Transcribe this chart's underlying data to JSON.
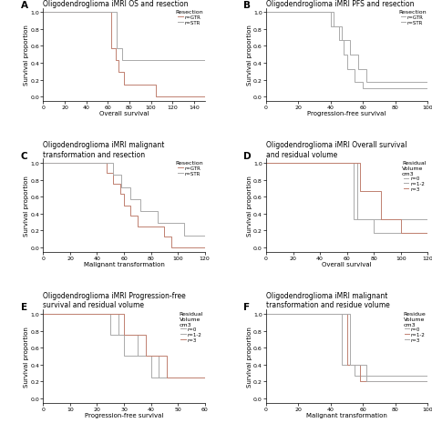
{
  "panels": [
    {
      "label": "A",
      "title": "Oligodendroglioma iMRI OS and resection",
      "xlabel": "Overall survival",
      "ylabel": "Survival proportion",
      "xlim": [
        0,
        150
      ],
      "ylim": [
        -0.05,
        1.05
      ],
      "xticks": [
        0,
        20,
        40,
        60,
        80,
        100,
        120,
        140
      ],
      "yticks": [
        0.0,
        0.2,
        0.4,
        0.6,
        0.8,
        1.0
      ],
      "legend_title": "Resection",
      "legend_labels": [
        "r=GTR",
        "r=STR"
      ],
      "curves": [
        {
          "x": [
            0,
            63,
            63,
            67,
            67,
            70,
            70,
            75,
            75,
            105,
            105,
            150
          ],
          "y": [
            1.0,
            1.0,
            0.57,
            0.57,
            0.43,
            0.43,
            0.29,
            0.29,
            0.14,
            0.14,
            0.0,
            0.0
          ],
          "color": "#c08070"
        },
        {
          "x": [
            0,
            68,
            68,
            73,
            73,
            80,
            80,
            95,
            95,
            140,
            140,
            150
          ],
          "y": [
            1.0,
            1.0,
            0.57,
            0.57,
            0.43,
            0.43,
            0.43,
            0.43,
            0.43,
            0.43,
            0.43,
            0.43
          ],
          "color": "#aaaaaa"
        }
      ]
    },
    {
      "label": "B",
      "title": "Oligodendroglioma iMRI PFS and resection",
      "xlabel": "Progression-free survival",
      "ylabel": "Survival proportion",
      "xlim": [
        0,
        100
      ],
      "ylim": [
        -0.05,
        1.05
      ],
      "xticks": [
        0,
        20,
        40,
        60,
        80,
        100
      ],
      "yticks": [
        0.0,
        0.2,
        0.4,
        0.6,
        0.8,
        1.0
      ],
      "legend_title": "Resection",
      "legend_labels": [
        "r=GTR",
        "r=STR"
      ],
      "curves": [
        {
          "x": [
            0,
            40,
            40,
            45,
            45,
            48,
            48,
            50,
            50,
            55,
            55,
            60,
            60,
            100
          ],
          "y": [
            1.0,
            1.0,
            0.83,
            0.83,
            0.67,
            0.67,
            0.5,
            0.5,
            0.33,
            0.33,
            0.17,
            0.17,
            0.1,
            0.1
          ],
          "color": "#aaaaaa"
        },
        {
          "x": [
            0,
            42,
            42,
            47,
            47,
            52,
            52,
            57,
            57,
            62,
            62,
            100
          ],
          "y": [
            1.0,
            1.0,
            0.83,
            0.83,
            0.67,
            0.67,
            0.5,
            0.5,
            0.33,
            0.33,
            0.17,
            0.17
          ],
          "color": "#aaaaaa"
        }
      ]
    },
    {
      "label": "C",
      "title": "Oligodendroglioma iMRI malignant\ntransformation and resection",
      "xlabel": "Malignant transformation",
      "ylabel": "Survival proportion",
      "xlim": [
        0,
        120
      ],
      "ylim": [
        -0.05,
        1.05
      ],
      "xticks": [
        0,
        20,
        40,
        60,
        80,
        100,
        120
      ],
      "yticks": [
        0.0,
        0.2,
        0.4,
        0.6,
        0.8,
        1.0
      ],
      "legend_title": "Resection",
      "legend_labels": [
        "r=GTR",
        "r=STR"
      ],
      "curves": [
        {
          "x": [
            0,
            47,
            47,
            52,
            52,
            57,
            57,
            60,
            60,
            65,
            65,
            70,
            70,
            90,
            90,
            95,
            95,
            120
          ],
          "y": [
            1.0,
            1.0,
            0.88,
            0.88,
            0.75,
            0.75,
            0.63,
            0.63,
            0.5,
            0.5,
            0.38,
            0.38,
            0.25,
            0.25,
            0.13,
            0.13,
            0.0,
            0.0
          ],
          "color": "#c08070"
        },
        {
          "x": [
            0,
            52,
            52,
            58,
            58,
            65,
            65,
            72,
            72,
            85,
            85,
            105,
            105,
            115,
            115,
            120
          ],
          "y": [
            1.0,
            1.0,
            0.86,
            0.86,
            0.71,
            0.71,
            0.57,
            0.57,
            0.43,
            0.43,
            0.29,
            0.29,
            0.14,
            0.14,
            0.14,
            0.14
          ],
          "color": "#aaaaaa"
        }
      ]
    },
    {
      "label": "D",
      "title": "Oligodendroglioma iMRI Overall survival\nand residual volume",
      "xlabel": "Overall survival",
      "ylabel": "Survival proportion",
      "xlim": [
        0,
        120
      ],
      "ylim": [
        -0.05,
        1.05
      ],
      "xticks": [
        0,
        20,
        40,
        60,
        80,
        100,
        120
      ],
      "yticks": [
        0.0,
        0.2,
        0.4,
        0.6,
        0.8,
        1.0
      ],
      "legend_title": "Residual\nVolume\ncm3",
      "legend_labels": [
        "r=0",
        "r=1-2",
        "r=3"
      ],
      "curves": [
        {
          "x": [
            0,
            65,
            65,
            75,
            75,
            120
          ],
          "y": [
            1.0,
            1.0,
            0.33,
            0.33,
            0.33,
            0.33
          ],
          "color": "#aaaaaa"
        },
        {
          "x": [
            0,
            68,
            68,
            80,
            80,
            120
          ],
          "y": [
            1.0,
            1.0,
            0.33,
            0.33,
            0.17,
            0.17
          ],
          "color": "#aaaaaa"
        },
        {
          "x": [
            0,
            70,
            70,
            85,
            85,
            100,
            100,
            120
          ],
          "y": [
            1.0,
            1.0,
            0.67,
            0.67,
            0.33,
            0.33,
            0.17,
            0.17
          ],
          "color": "#c08070"
        }
      ]
    },
    {
      "label": "E",
      "title": "Oligodendroglioma iMRI Progression-free\nsurvival and residual volume",
      "xlabel": "Progression-free survival",
      "ylabel": "Survival proportion",
      "xlim": [
        0,
        60
      ],
      "ylim": [
        -0.05,
        1.05
      ],
      "xticks": [
        0,
        10,
        20,
        30,
        40,
        50,
        60
      ],
      "yticks": [
        0.0,
        0.2,
        0.4,
        0.6,
        0.8,
        1.0
      ],
      "legend_title": "Residual\nVolume\ncm3",
      "legend_labels": [
        "r=0",
        "r=1-2",
        "r=3"
      ],
      "curves": [
        {
          "x": [
            0,
            25,
            25,
            30,
            30,
            40,
            40,
            47,
            47,
            60
          ],
          "y": [
            1.0,
            1.0,
            0.75,
            0.75,
            0.5,
            0.5,
            0.25,
            0.25,
            0.25,
            0.25
          ],
          "color": "#aaaaaa"
        },
        {
          "x": [
            0,
            28,
            28,
            35,
            35,
            43,
            43,
            50,
            50,
            60
          ],
          "y": [
            1.0,
            1.0,
            0.75,
            0.75,
            0.5,
            0.5,
            0.25,
            0.25,
            0.25,
            0.25
          ],
          "color": "#aaaaaa"
        },
        {
          "x": [
            0,
            30,
            30,
            38,
            38,
            46,
            46,
            53,
            53,
            60
          ],
          "y": [
            1.0,
            1.0,
            0.75,
            0.75,
            0.5,
            0.5,
            0.25,
            0.25,
            0.25,
            0.25
          ],
          "color": "#c08070"
        }
      ]
    },
    {
      "label": "F",
      "title": "Oligodendroglioma iMRI malignant\ntransformation and residue volume",
      "xlabel": "Malignant transformation",
      "ylabel": "Survival proportion",
      "xlim": [
        0,
        100
      ],
      "ylim": [
        -0.05,
        1.05
      ],
      "xticks": [
        0,
        20,
        40,
        60,
        80,
        100
      ],
      "yticks": [
        0.0,
        0.2,
        0.4,
        0.6,
        0.8,
        1.0
      ],
      "legend_title": "Residue\nVolume\ncm3",
      "legend_labels": [
        "r=0",
        "r=1-2",
        "r=3"
      ],
      "curves": [
        {
          "x": [
            0,
            47,
            47,
            55,
            55,
            100
          ],
          "y": [
            1.0,
            1.0,
            0.4,
            0.4,
            0.27,
            0.27
          ],
          "color": "#aaaaaa"
        },
        {
          "x": [
            0,
            50,
            50,
            58,
            58,
            100
          ],
          "y": [
            1.0,
            1.0,
            0.4,
            0.4,
            0.2,
            0.2
          ],
          "color": "#c08070"
        },
        {
          "x": [
            0,
            52,
            52,
            62,
            62,
            100
          ],
          "y": [
            1.0,
            1.0,
            0.4,
            0.4,
            0.2,
            0.2
          ],
          "color": "#aaaaaa"
        }
      ]
    }
  ],
  "fig_width": 4.74,
  "fig_height": 4.77,
  "dpi": 100,
  "background_color": "#ffffff",
  "title_font_size": 5.5,
  "label_font_size": 5.0,
  "tick_font_size": 4.5,
  "legend_font_size": 4.0,
  "legend_title_font_size": 4.5
}
